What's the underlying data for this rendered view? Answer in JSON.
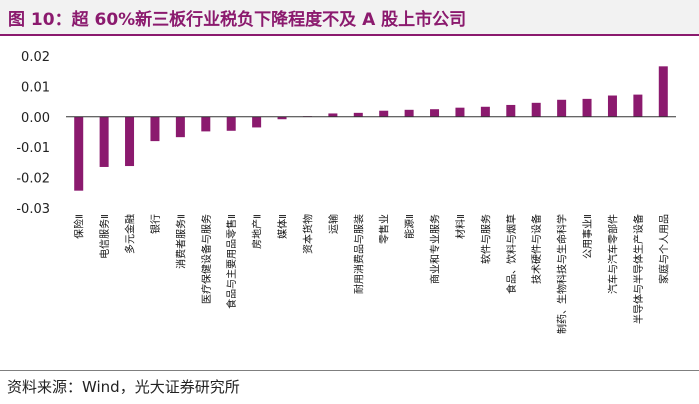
{
  "header": {
    "title": "图 10：超 60%新三板行业税负下降程度不及 A 股上市公司"
  },
  "footer": {
    "source": "资料来源：Wind，光大证券研究所"
  },
  "colors": {
    "bar": "#8b1a6e",
    "title": "#8b1a6e",
    "title_bg": "#f2f2f2"
  },
  "chart_data": {
    "type": "bar",
    "title": "",
    "xlabel": "",
    "ylabel": "",
    "ylim": [
      -0.03,
      0.02
    ],
    "yticks": [
      0.02,
      0.01,
      0.0,
      -0.01,
      -0.02,
      -0.03
    ],
    "ytick_labels": [
      "0.02",
      "0.01",
      "0.00",
      "-0.01",
      "-0.02",
      "-0.03"
    ],
    "categories": [
      "保险Ⅱ",
      "电信服务Ⅱ",
      "多元金融",
      "银行",
      "消费者服务Ⅱ",
      "医疗保健设备与服务",
      "食品与主要用品零售Ⅱ",
      "房地产Ⅱ",
      "媒体Ⅱ",
      "资本货物",
      "运输",
      "耐用消费品与服装",
      "零售业",
      "能源Ⅱ",
      "商业和专业服务",
      "材料Ⅱ",
      "软件与服务",
      "食品、饮料与烟草",
      "技术硬件与设备",
      "制药、生物科技与生命科学",
      "公用事业Ⅱ",
      "汽车与汽车零部件",
      "半导体与半导体生产设备",
      "家庭与个人用品"
    ],
    "values": [
      -0.0243,
      -0.0165,
      -0.0162,
      -0.008,
      -0.0067,
      -0.0048,
      -0.0046,
      -0.0035,
      -0.0008,
      0.0002,
      0.0011,
      0.0013,
      0.002,
      0.0023,
      0.0025,
      0.003,
      0.0033,
      0.0039,
      0.0046,
      0.0056,
      0.0059,
      0.007,
      0.0073,
      0.0166
    ],
    "grid": false,
    "legend": "none"
  }
}
